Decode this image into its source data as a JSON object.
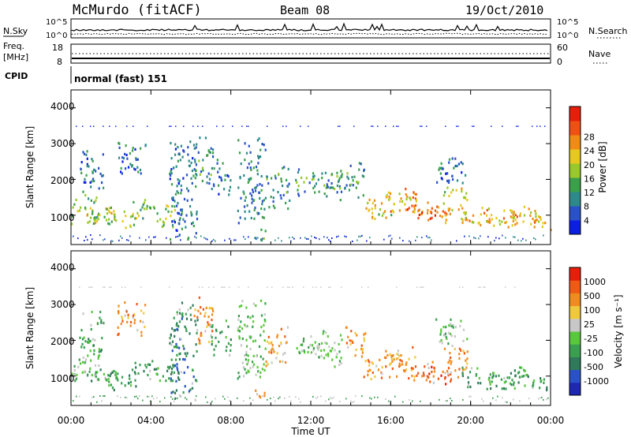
{
  "header": {
    "station": "McMurdo (fitACF)",
    "beam": "Beam 08",
    "date": "19/Oct/2010"
  },
  "panels": {
    "nsky_label": "N.Sky",
    "nsearch_label": "N.Search",
    "nsky_ticks": [
      "10^5",
      "10^0"
    ],
    "nsearch_ticks": [
      "10^5",
      "10^0"
    ],
    "freq_label_1": "Freq.",
    "freq_label_2": "[MHz]",
    "freq_ticks": [
      "18",
      "8"
    ],
    "nave_label": "Nave",
    "nave_ticks": [
      "60",
      "0"
    ],
    "cpid_label": "CPID",
    "cpid_text": "normal (fast) 151"
  },
  "chart_data": [
    {
      "type": "heatmap",
      "name": "power",
      "ylabel": "Slant Range [km]",
      "xlabel": "",
      "xlim": [
        0,
        24
      ],
      "ylim": [
        180,
        4500
      ],
      "y_ticks": [
        "1000",
        "2000",
        "3000",
        "4000"
      ],
      "colorbar_label": "Power [dB]",
      "colorbar_ticks": [
        "4",
        "8",
        "12",
        "16",
        "20",
        "24",
        "28"
      ],
      "colors": [
        "#0a1ee6",
        "#2a52c8",
        "#2e8a8a",
        "#3aa04a",
        "#98c82a",
        "#e6c81e",
        "#f08c14",
        "#f05014",
        "#e61e0a"
      ]
    },
    {
      "type": "heatmap",
      "name": "velocity",
      "ylabel": "Slant Range [km]",
      "xlabel": "Time UT",
      "xlim": [
        0,
        24
      ],
      "ylim": [
        180,
        4500
      ],
      "y_ticks": [
        "1000",
        "2000",
        "3000",
        "4000"
      ],
      "x_ticks": [
        "00:00",
        "04:00",
        "08:00",
        "12:00",
        "16:00",
        "20:00",
        "00:00"
      ],
      "colorbar_label": "Velocity [m s⁻¹]",
      "colorbar_ticks": [
        "1000",
        "500",
        "100",
        "25",
        "-25",
        "-100",
        "-500",
        "-1000"
      ],
      "colors": [
        "#1e28b4",
        "#2a52c8",
        "#2e7a5a",
        "#3aa050",
        "#5ac83c",
        "#c8c8c8",
        "#f0c83c",
        "#f08c1e",
        "#f05a14",
        "#e61e0a"
      ]
    }
  ]
}
